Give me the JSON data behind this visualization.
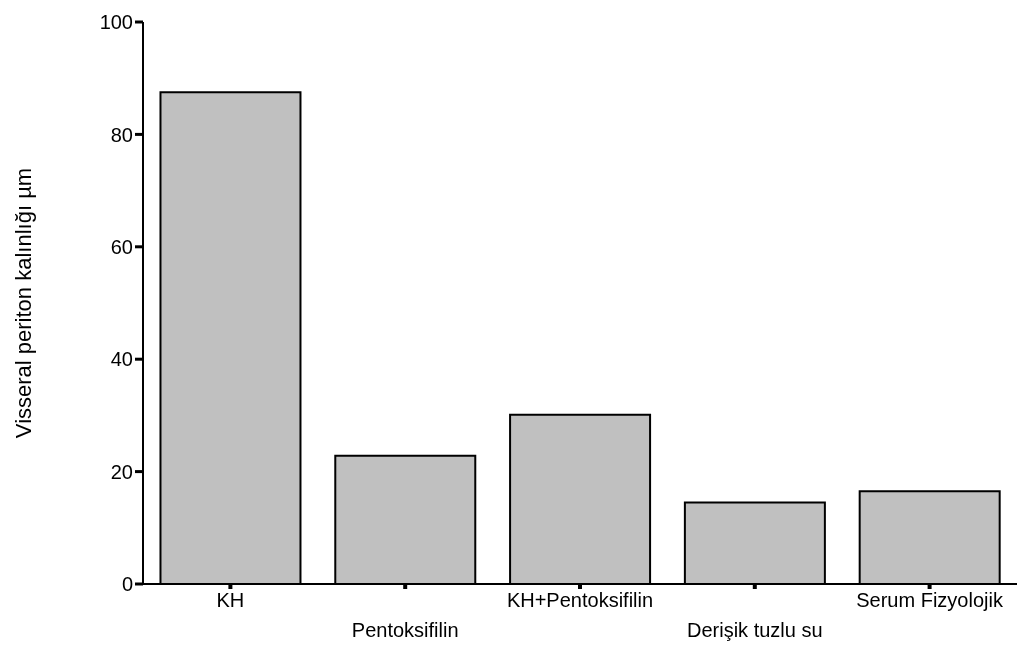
{
  "chart_data": {
    "type": "bar",
    "ylabel": "Visseral periton kalınlığı µm",
    "categories": [
      "KH",
      "Pentoksifilin",
      "KH+Pentoksifilin",
      "Derişik tuzlu su",
      "Serum Fizyolojik"
    ],
    "values": [
      87.5,
      22.8,
      30.1,
      14.5,
      16.5
    ],
    "color": "#c0c0c0",
    "ylim": [
      0,
      100
    ],
    "yticks": [
      0,
      20,
      40,
      60,
      80,
      100
    ],
    "grid": false,
    "legend": false
  }
}
